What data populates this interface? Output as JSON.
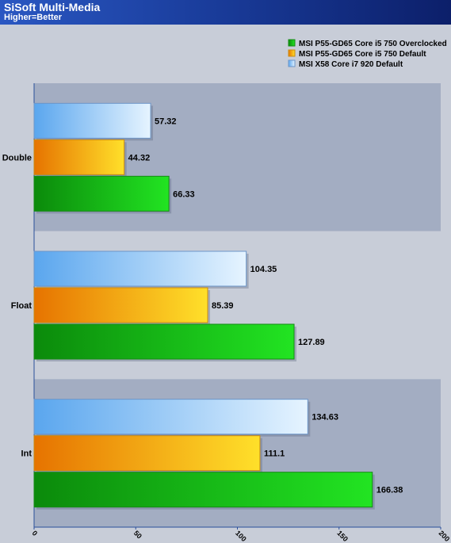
{
  "chart_data": {
    "type": "bar",
    "orientation": "horizontal",
    "title": "SiSoft Multi-Media",
    "subtitle": "Higher=Better",
    "categories": [
      "Double",
      "Float",
      "Int"
    ],
    "series": [
      {
        "name": "MSI X58 Core i7 920 Default",
        "color": "#8ec4f6",
        "values": [
          57.32,
          104.35,
          134.63
        ]
      },
      {
        "name": "MSI P55-GD65 Core i5 750 Default",
        "color": "#f5b01e",
        "values": [
          44.32,
          85.39,
          111.1
        ]
      },
      {
        "name": "MSI P55-GD65 Core i5 750 Overclocked",
        "color": "#1fbf1f",
        "values": [
          66.33,
          127.89,
          166.38
        ]
      }
    ],
    "legend_order": [
      "MSI P55-GD65 Core i5 750 Overclocked",
      "MSI P55-GD65 Core i5 750 Default",
      "MSI X58 Core i7 920 Default"
    ],
    "legend_position": "top-right",
    "xlim": [
      0,
      200
    ],
    "xticks": [
      "0",
      "50",
      "100",
      "150",
      "200"
    ]
  }
}
